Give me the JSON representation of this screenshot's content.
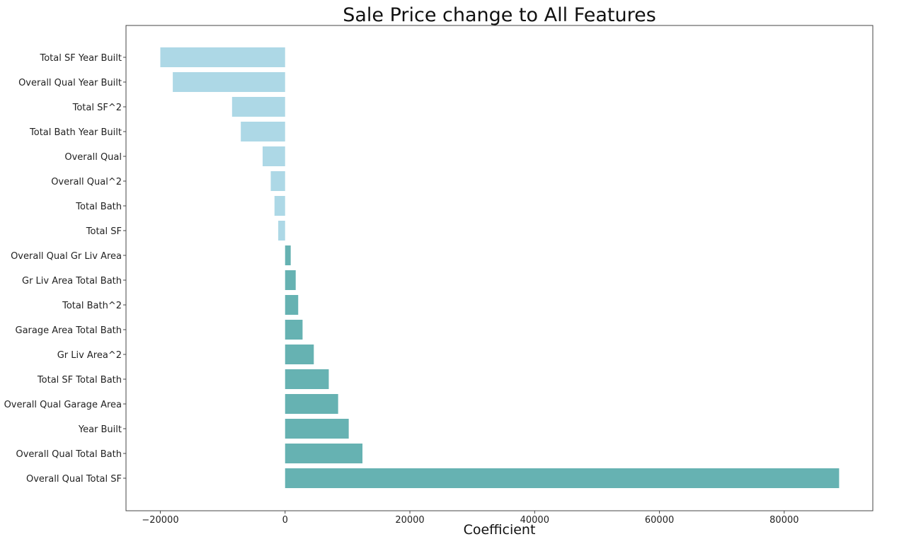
{
  "chart_data": {
    "type": "bar",
    "orientation": "horizontal",
    "title": "Sale Price change to All Features",
    "xlabel": "Coefficient",
    "ylabel": "",
    "xlim": [
      -25500,
      94200
    ],
    "xticks": [
      -20000,
      0,
      20000,
      40000,
      60000,
      80000
    ],
    "xtick_labels": [
      "−20000",
      "0",
      "20000",
      "40000",
      "60000",
      "80000"
    ],
    "grid": false,
    "colors": {
      "negative": "#add8e6",
      "positive": "#66b2b2"
    },
    "categories": [
      "Total SF Year Built",
      "Overall Qual Year Built",
      "Total SF^2",
      "Total Bath Year Built",
      "Overall Qual",
      "Overall Qual^2",
      "Total Bath",
      "Total SF",
      "Overall Qual Gr Liv Area",
      "Gr Liv Area Total Bath",
      "Total Bath^2",
      "Garage Area Total Bath",
      "Gr Liv Area^2",
      "Total SF Total Bath",
      "Overall Qual Garage Area",
      "Year Built",
      "Overall Qual Total Bath",
      "Overall Qual Total SF"
    ],
    "values": [
      -20000,
      -18000,
      -8500,
      -7100,
      -3600,
      -2300,
      -1700,
      -1100,
      900,
      1700,
      2100,
      2800,
      4600,
      7000,
      8500,
      10200,
      12400,
      88800
    ]
  }
}
